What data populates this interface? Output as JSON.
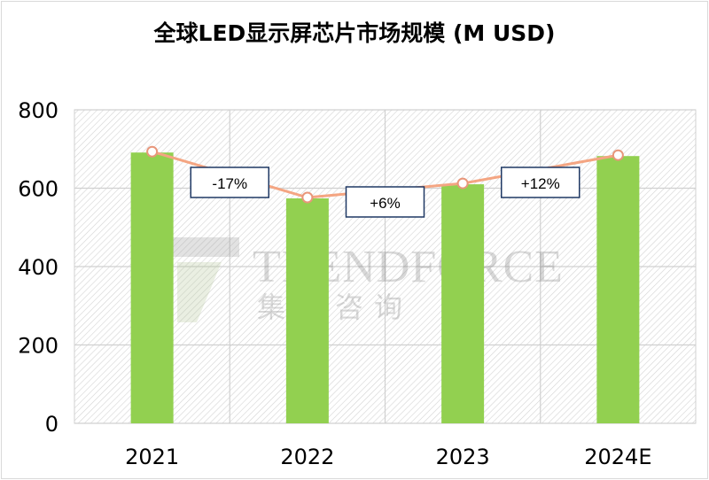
{
  "chart_data": {
    "type": "bar",
    "title": "全球LED显示屏芯片市场规模 (M USD)",
    "categories": [
      "2021",
      "2022",
      "2023",
      "2024E"
    ],
    "series": [
      {
        "type": "bar",
        "values": [
          691,
          574,
          610,
          682
        ],
        "color": "#92d050"
      },
      {
        "type": "line",
        "values": [
          691,
          574,
          610,
          682
        ],
        "color": "#f4a582"
      }
    ],
    "annotations": [
      "-17%",
      "+6%",
      "+12%"
    ],
    "ylim": [
      0,
      800
    ],
    "yticks": [
      "0",
      "200",
      "400",
      "600",
      "800"
    ],
    "grid": true,
    "legend": "none",
    "xlabel": "",
    "ylabel": ""
  },
  "watermark": {
    "brand": "TRENDFORCE",
    "cn": "集邦咨询"
  }
}
